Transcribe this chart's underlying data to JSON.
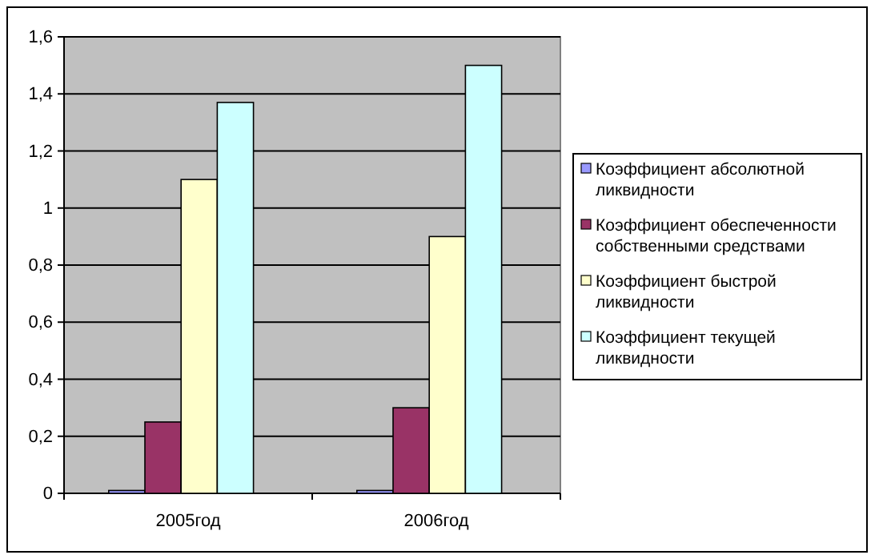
{
  "chart_data": {
    "type": "bar",
    "categories": [
      "2005год",
      "2006год"
    ],
    "series": [
      {
        "name": "Коэффициент абсолютной ликвидности",
        "color": "#9999ff",
        "values": [
          0.01,
          0.01
        ]
      },
      {
        "name": "Коэффициент обеспеченности собственными средствами",
        "color": "#993366",
        "values": [
          0.25,
          0.3
        ]
      },
      {
        "name": "Коэффициент быстрой ликвидности",
        "color": "#ffffcc",
        "values": [
          1.1,
          0.9
        ]
      },
      {
        "name": "Коэффициент текущей ликвидности",
        "color": "#ccffff",
        "values": [
          1.37,
          1.5
        ]
      }
    ],
    "ylim": [
      0,
      1.6
    ],
    "yticks": [
      {
        "value": 0,
        "label": "0"
      },
      {
        "value": 0.2,
        "label": "0,2"
      },
      {
        "value": 0.4,
        "label": "0,4"
      },
      {
        "value": 0.6,
        "label": "0,6"
      },
      {
        "value": 0.8,
        "label": "0,8"
      },
      {
        "value": 1,
        "label": "1"
      },
      {
        "value": 1.2,
        "label": "1,2"
      },
      {
        "value": 1.4,
        "label": "1,4"
      },
      {
        "value": 1.6,
        "label": "1,6"
      }
    ],
    "grid": "y",
    "legend": "right"
  }
}
